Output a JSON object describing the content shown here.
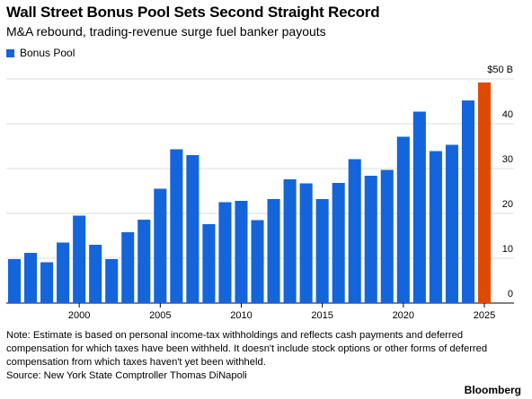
{
  "title": "Wall Street Bonus Pool Sets Second Straight Record",
  "subtitle": "M&A rebound, trading-revenue surge fuel banker payouts",
  "legend": {
    "label": "Bonus Pool",
    "color": "#1464dc"
  },
  "note": "Note: Estimate is based on personal income-tax withholdings and reflects cash payments and deferred compensation for which taxes have been withheld. It doesn't include stock options or other forms of deferred compensation from which taxes haven't yet been withheld.",
  "source": "Source: New York State Comptroller Thomas DiNapoli",
  "brand": "Bloomberg",
  "chart_data": {
    "type": "bar",
    "x": [
      1996,
      1997,
      1998,
      1999,
      2000,
      2001,
      2002,
      2003,
      2004,
      2005,
      2006,
      2007,
      2008,
      2009,
      2010,
      2011,
      2012,
      2013,
      2014,
      2015,
      2016,
      2017,
      2018,
      2019,
      2020,
      2021,
      2022,
      2023,
      2024,
      2025
    ],
    "values": [
      9.8,
      11.2,
      9.1,
      13.5,
      19.5,
      13,
      9.8,
      15.8,
      18.6,
      25.5,
      34.3,
      33,
      17.6,
      22.5,
      22.8,
      18.5,
      23.2,
      27.6,
      26.7,
      23.2,
      26.8,
      32.1,
      28.4,
      29.7,
      37.1,
      42.7,
      33.9,
      35.3,
      45.2,
      49.2
    ],
    "series_colors": {
      "default": "#1464dc",
      "highlight": "#e04a00"
    },
    "highlight_index": 29,
    "xticks": [
      2000,
      2005,
      2010,
      2015,
      2020,
      2025
    ],
    "ytick_values": [
      0,
      10,
      20,
      30,
      40,
      50
    ],
    "ytick_labels": [
      "0",
      "10",
      "20",
      "30",
      "40",
      "$50 B"
    ],
    "ylim": [
      0,
      50
    ],
    "grid": true,
    "axis_side": "right"
  }
}
